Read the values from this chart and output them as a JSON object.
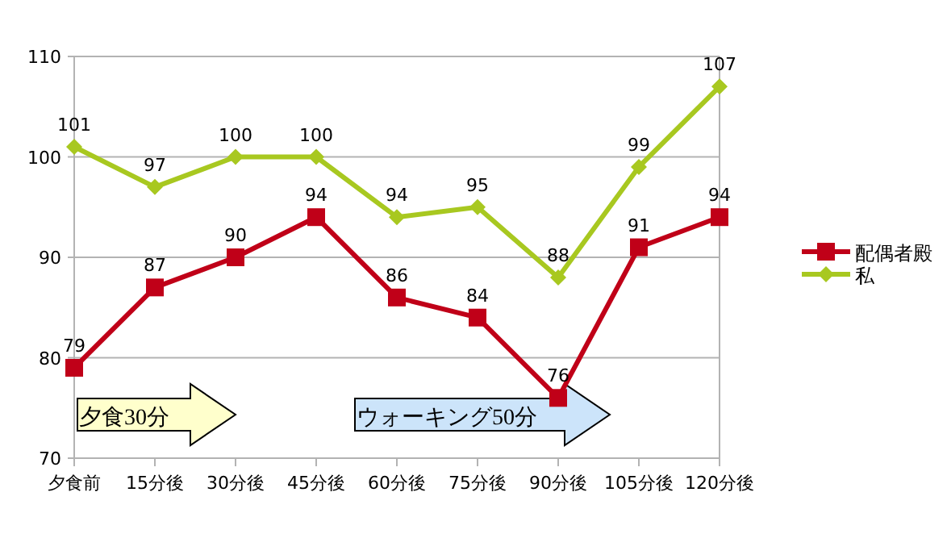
{
  "chart_data": {
    "type": "line",
    "categories": [
      "夕食前",
      "15分後",
      "30分後",
      "45分後",
      "60分後",
      "75分後",
      "90分後",
      "105分後",
      "120分後"
    ],
    "series": [
      {
        "name": "配偶者殿",
        "color": "#c00018",
        "marker": "square",
        "values": [
          79,
          87,
          90,
          94,
          86,
          84,
          76,
          91,
          94
        ]
      },
      {
        "name": "私",
        "color": "#a8c820",
        "marker": "diamond",
        "values": [
          101,
          97,
          100,
          100,
          94,
          95,
          88,
          99,
          107
        ]
      }
    ],
    "ylim": [
      70,
      110
    ],
    "yticks": [
      70,
      80,
      90,
      100,
      110
    ],
    "grid": "y",
    "legend": "right",
    "data_labels": true,
    "annotations": [
      "夕食30分",
      "ウォーキング50分"
    ]
  }
}
